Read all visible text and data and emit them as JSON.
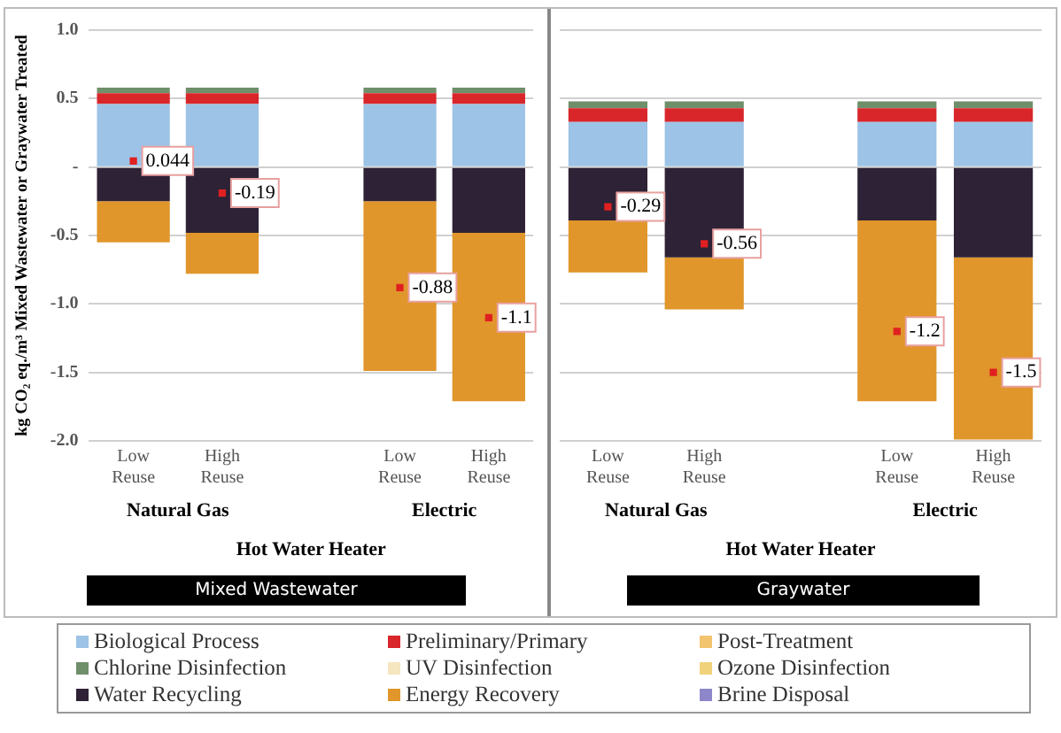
{
  "chart_data": [
    {
      "type": "bar",
      "subtitle": "Mixed Wastewater",
      "xlabel": "Hot Water Heater",
      "ylabel": "kg CO₂ eq./m³ Mixed Wastewater or Graywater Treated",
      "categories": [
        "Low Reuse",
        "High Reuse",
        null,
        "Low Reuse",
        "High Reuse"
      ],
      "annotations": [
        "Natural Gas",
        "Electric"
      ],
      "stacked": true,
      "grid": "y",
      "legend": "bottom",
      "ylim": [
        -2,
        1
      ],
      "yticks": [
        {
          "value": 1,
          "label": "1.0"
        },
        0.5,
        {
          "value": 0,
          "label": "-"
        },
        -0.5,
        {
          "value": -1,
          "label": "-1.0"
        },
        -1.5,
        {
          "value": -2,
          "label": "-2.0"
        }
      ],
      "series": [
        {
          "name": "Biological Process",
          "color": "#9dc3e6",
          "values": [
            0.46,
            0.46,
            null,
            0.46,
            0.46
          ]
        },
        {
          "name": "Preliminary/Primary",
          "color": "#d9262b",
          "values": [
            0.08,
            0.08,
            null,
            0.08,
            0.08
          ]
        },
        {
          "name": "Post-Treatment",
          "color": "#f2c46e",
          "values": [
            0,
            0,
            null,
            0,
            0
          ]
        },
        {
          "name": "Chlorine Disinfection",
          "color": "#6f8f6a",
          "values": [
            0.04,
            0.04,
            null,
            0.04,
            0.04
          ]
        },
        {
          "name": "UV Disinfection",
          "color": "#f5e6c0",
          "values": [
            0,
            0,
            null,
            0,
            0
          ]
        },
        {
          "name": "Ozone Disinfection",
          "color": "#f0d27a",
          "values": [
            0,
            0,
            null,
            0,
            0
          ]
        },
        {
          "name": "Water Recycling",
          "color": "#2e2236",
          "values": [
            -0.25,
            -0.48,
            null,
            -0.25,
            -0.48
          ]
        },
        {
          "name": "Energy Recovery",
          "color": "#e0962b",
          "values": [
            -0.3,
            -0.3,
            null,
            -1.24,
            -1.23
          ]
        },
        {
          "name": "Brine Disposal",
          "color": "#8d86c9",
          "values": [
            0,
            0,
            null,
            0,
            0
          ]
        },
        {
          "type": "scatter",
          "marker": "square",
          "color": "#e02020",
          "values": [
            0.044,
            -0.19,
            null,
            -0.88,
            -1.1
          ],
          "value_labels": [
            "0.044",
            "-0.19",
            null,
            "-0.88",
            "-1.1"
          ]
        }
      ]
    },
    {
      "type": "bar",
      "subtitle": "Graywater",
      "xlabel": "Hot Water Heater",
      "categories": [
        "Low Reuse",
        "High Reuse",
        null,
        "Low Reuse",
        "High Reuse"
      ],
      "annotations": [
        "Natural Gas",
        "Electric"
      ],
      "stacked": true,
      "grid": "y",
      "tick_labels": "x",
      "ylim": [
        -2,
        1
      ],
      "yticks": [
        1,
        0.5,
        0,
        -0.5,
        -1,
        -1.5,
        -2
      ],
      "series": [
        {
          "color": "#9dc3e6",
          "values": [
            0.33,
            0.33,
            null,
            0.33,
            0.33
          ]
        },
        {
          "color": "#d9262b",
          "values": [
            0.1,
            0.1,
            null,
            0.1,
            0.1
          ]
        },
        {
          "color": "#f2c46e",
          "values": [
            0,
            0,
            null,
            0,
            0
          ]
        },
        {
          "color": "#6f8f6a",
          "values": [
            0.05,
            0.05,
            null,
            0.05,
            0.05
          ]
        },
        {
          "color": "#f5e6c0",
          "values": [
            0,
            0,
            null,
            0,
            0
          ]
        },
        {
          "color": "#f0d27a",
          "values": [
            0,
            0,
            null,
            0,
            0
          ]
        },
        {
          "color": "#2e2236",
          "values": [
            -0.39,
            -0.66,
            null,
            -0.39,
            -0.66
          ]
        },
        {
          "color": "#e0962b",
          "values": [
            -0.38,
            -0.38,
            null,
            -1.32,
            -1.33
          ]
        },
        {
          "color": "#8d86c9",
          "values": [
            0,
            0,
            null,
            0,
            0
          ]
        },
        {
          "type": "scatter",
          "marker": "square",
          "color": "#e02020",
          "values": [
            -0.29,
            -0.56,
            null,
            -1.2,
            -1.5
          ],
          "value_labels": [
            "-0.29",
            "-0.56",
            null,
            "-1.2",
            "-1.5"
          ]
        }
      ]
    }
  ]
}
